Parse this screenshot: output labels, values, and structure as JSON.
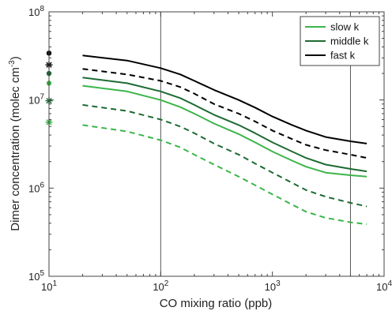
{
  "chart_data": {
    "type": "line",
    "xlabel": "CO mixing ratio (ppb)",
    "ylabel": "Dimer concentration (molec cm",
    "ylabel_superscript": "-3",
    "ylabel_suffix": ")",
    "x_scale": "log",
    "y_scale": "log",
    "xlim": [
      10,
      10000
    ],
    "ylim": [
      100000,
      100000000
    ],
    "x_ticks": [
      10,
      100,
      1000,
      10000
    ],
    "x_tick_labels": [
      {
        "base": "10",
        "exp": "1"
      },
      {
        "base": "10",
        "exp": "2"
      },
      {
        "base": "10",
        "exp": "3"
      },
      {
        "base": "10",
        "exp": "4"
      }
    ],
    "y_ticks": [
      100000,
      1000000,
      10000000,
      100000000
    ],
    "y_tick_labels": [
      {
        "base": "10",
        "exp": "5"
      },
      {
        "base": "10",
        "exp": "6"
      },
      {
        "base": "10",
        "exp": "7"
      },
      {
        "base": "10",
        "exp": "8"
      }
    ],
    "grid": false,
    "reference_lines_x": [
      100,
      5000
    ],
    "legend_position": "top-right",
    "legend": [
      {
        "label": "slow k",
        "color": "#3bb54a"
      },
      {
        "label": "middle k",
        "color": "#1d6b32"
      },
      {
        "label": "fast k",
        "color": "#000000"
      }
    ],
    "x": [
      20,
      50,
      100,
      150,
      200,
      300,
      500,
      700,
      1000,
      1500,
      2000,
      3000,
      5000,
      7000
    ],
    "series": [
      {
        "color": "#000000",
        "style": "solid",
        "values": [
          32000000,
          28000000,
          23000000,
          19500000,
          16500000,
          13000000,
          10000000,
          8200000,
          6500000,
          5200000,
          4500000,
          3800000,
          3400000,
          3200000
        ]
      },
      {
        "color": "#000000",
        "style": "dashed",
        "values": [
          22500000,
          19500000,
          16500000,
          14000000,
          11800000,
          9000000,
          7000000,
          5700000,
          4500000,
          3600000,
          3100000,
          2700000,
          2400000,
          2200000
        ]
      },
      {
        "color": "#1d6b32",
        "style": "solid",
        "values": [
          18000000,
          15500000,
          12500000,
          10500000,
          8800000,
          6800000,
          5200000,
          4200000,
          3300000,
          2600000,
          2200000,
          1850000,
          1650000,
          1550000
        ]
      },
      {
        "color": "#3bb54a",
        "style": "solid",
        "values": [
          14500000,
          12500000,
          10000000,
          8300000,
          7000000,
          5400000,
          4100000,
          3300000,
          2600000,
          2050000,
          1750000,
          1500000,
          1400000,
          1350000
        ]
      },
      {
        "color": "#1d6b32",
        "style": "dashed",
        "values": [
          8800000,
          7500000,
          6000000,
          5000000,
          4200000,
          3200000,
          2400000,
          1900000,
          1500000,
          1150000,
          950000,
          800000,
          680000,
          620000
        ]
      },
      {
        "color": "#3bb54a",
        "style": "dashed",
        "values": [
          5200000,
          4400000,
          3500000,
          2900000,
          2400000,
          1850000,
          1350000,
          1080000,
          850000,
          650000,
          540000,
          460000,
          410000,
          390000
        ]
      }
    ],
    "markers_at_x10": [
      {
        "y": 34000000,
        "symbol": "dot",
        "color": "#000000"
      },
      {
        "y": 25000000,
        "symbol": "star",
        "color": "#000000"
      },
      {
        "y": 20000000,
        "symbol": "dot",
        "color": "#1d6b32"
      },
      {
        "y": 15500000,
        "symbol": "dot",
        "color": "#3bb54a"
      },
      {
        "y": 9800000,
        "symbol": "star",
        "color": "#1d6b32"
      },
      {
        "y": 5600000,
        "symbol": "star",
        "color": "#3bb54a"
      }
    ]
  }
}
